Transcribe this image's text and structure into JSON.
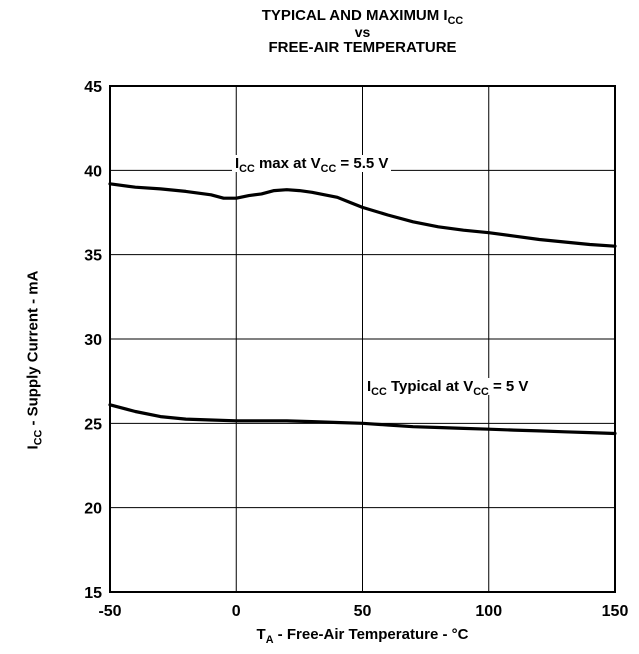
{
  "chart_data": {
    "type": "line",
    "title": {
      "line1_prefix": "TYPICAL AND MAXIMUM I",
      "line1_sub": "CC",
      "line2": "vs",
      "line3": "FREE-AIR TEMPERATURE"
    },
    "xlabel": {
      "prefix": "T",
      "sub": "A",
      "suffix": " - Free-Air Temperature - °C"
    },
    "ylabel": {
      "prefix": "I",
      "sub": "CC",
      "suffix": " - Supply Current - mA"
    },
    "xlim": [
      -50,
      150
    ],
    "ylim": [
      15,
      45
    ],
    "x_ticks": [
      -50,
      0,
      50,
      100,
      150
    ],
    "y_ticks": [
      15,
      20,
      25,
      30,
      35,
      40,
      45
    ],
    "grid": true,
    "series": [
      {
        "key": "max",
        "label": {
          "p1": "I",
          "s1": "CC",
          "p2": " max at V",
          "s2": "CC",
          "p3": " = 5.5 V"
        },
        "x": [
          -50,
          -40,
          -30,
          -20,
          -10,
          -5,
          0,
          5,
          10,
          15,
          20,
          25,
          30,
          35,
          40,
          45,
          50,
          60,
          70,
          80,
          90,
          100,
          110,
          120,
          130,
          140,
          150
        ],
        "y": [
          39.2,
          39.0,
          38.9,
          38.75,
          38.55,
          38.35,
          38.35,
          38.5,
          38.6,
          38.8,
          38.85,
          38.8,
          38.7,
          38.55,
          38.4,
          38.1,
          37.8,
          37.35,
          36.95,
          36.65,
          36.45,
          36.3,
          36.1,
          35.9,
          35.75,
          35.6,
          35.5
        ]
      },
      {
        "key": "typ",
        "label": {
          "p1": "I",
          "s1": "CC",
          "p2": " Typical at V",
          "s2": "CC",
          "p3": " = 5 V"
        },
        "x": [
          -50,
          -40,
          -30,
          -20,
          -10,
          0,
          10,
          20,
          30,
          40,
          50,
          60,
          70,
          80,
          90,
          100,
          110,
          120,
          130,
          140,
          150
        ],
        "y": [
          26.1,
          25.7,
          25.4,
          25.25,
          25.2,
          25.15,
          25.15,
          25.15,
          25.1,
          25.05,
          25.0,
          24.9,
          24.8,
          24.75,
          24.7,
          24.65,
          24.6,
          24.55,
          24.5,
          24.45,
          24.4
        ]
      }
    ]
  },
  "colors": {
    "line": "#000000",
    "grid": "#000000",
    "background": "#ffffff"
  }
}
